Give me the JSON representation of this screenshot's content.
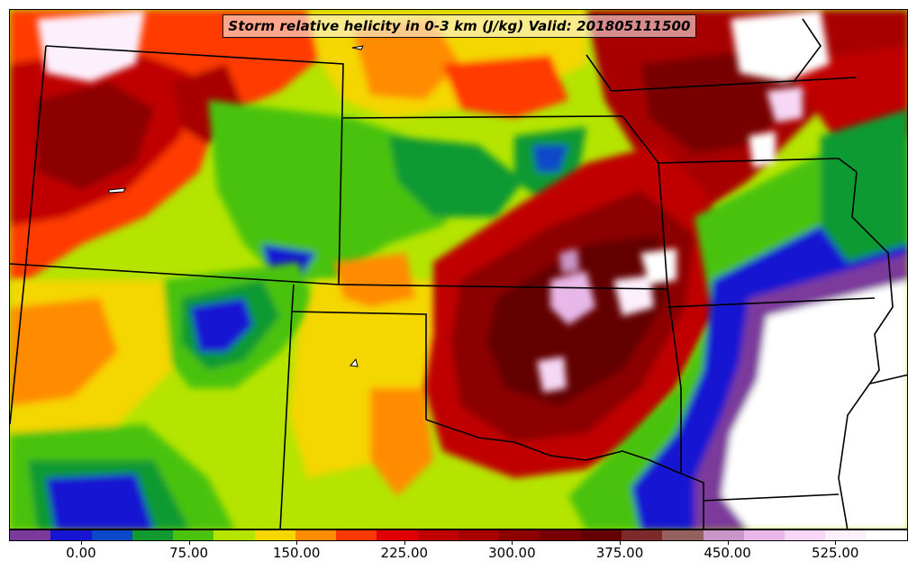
{
  "title": "Storm relative helicity in 0-3 km (J/kg) Valid: 201805111500",
  "map": {
    "variable": "Storm relative helicity",
    "layer": "0-3 km",
    "units": "J/kg",
    "valid_time": "201805111500"
  },
  "colorbar": {
    "colors": [
      "#7b3a9b",
      "#1515d2",
      "#0a4ac8",
      "#109a30",
      "#4ac20e",
      "#b4e400",
      "#f4d600",
      "#ff8c00",
      "#ff3a00",
      "#e00000",
      "#c00000",
      "#a80000",
      "#8c0000",
      "#780000",
      "#640000",
      "#7d2a2a",
      "#946060",
      "#c896c8",
      "#e8b8e8",
      "#f6d8f6",
      "#fdf0fd",
      "#ffffff"
    ],
    "tick_labels": [
      "0.00",
      "75.00",
      "150.00",
      "225.00",
      "300.00",
      "375.00",
      "450.00",
      "525.00"
    ]
  }
}
